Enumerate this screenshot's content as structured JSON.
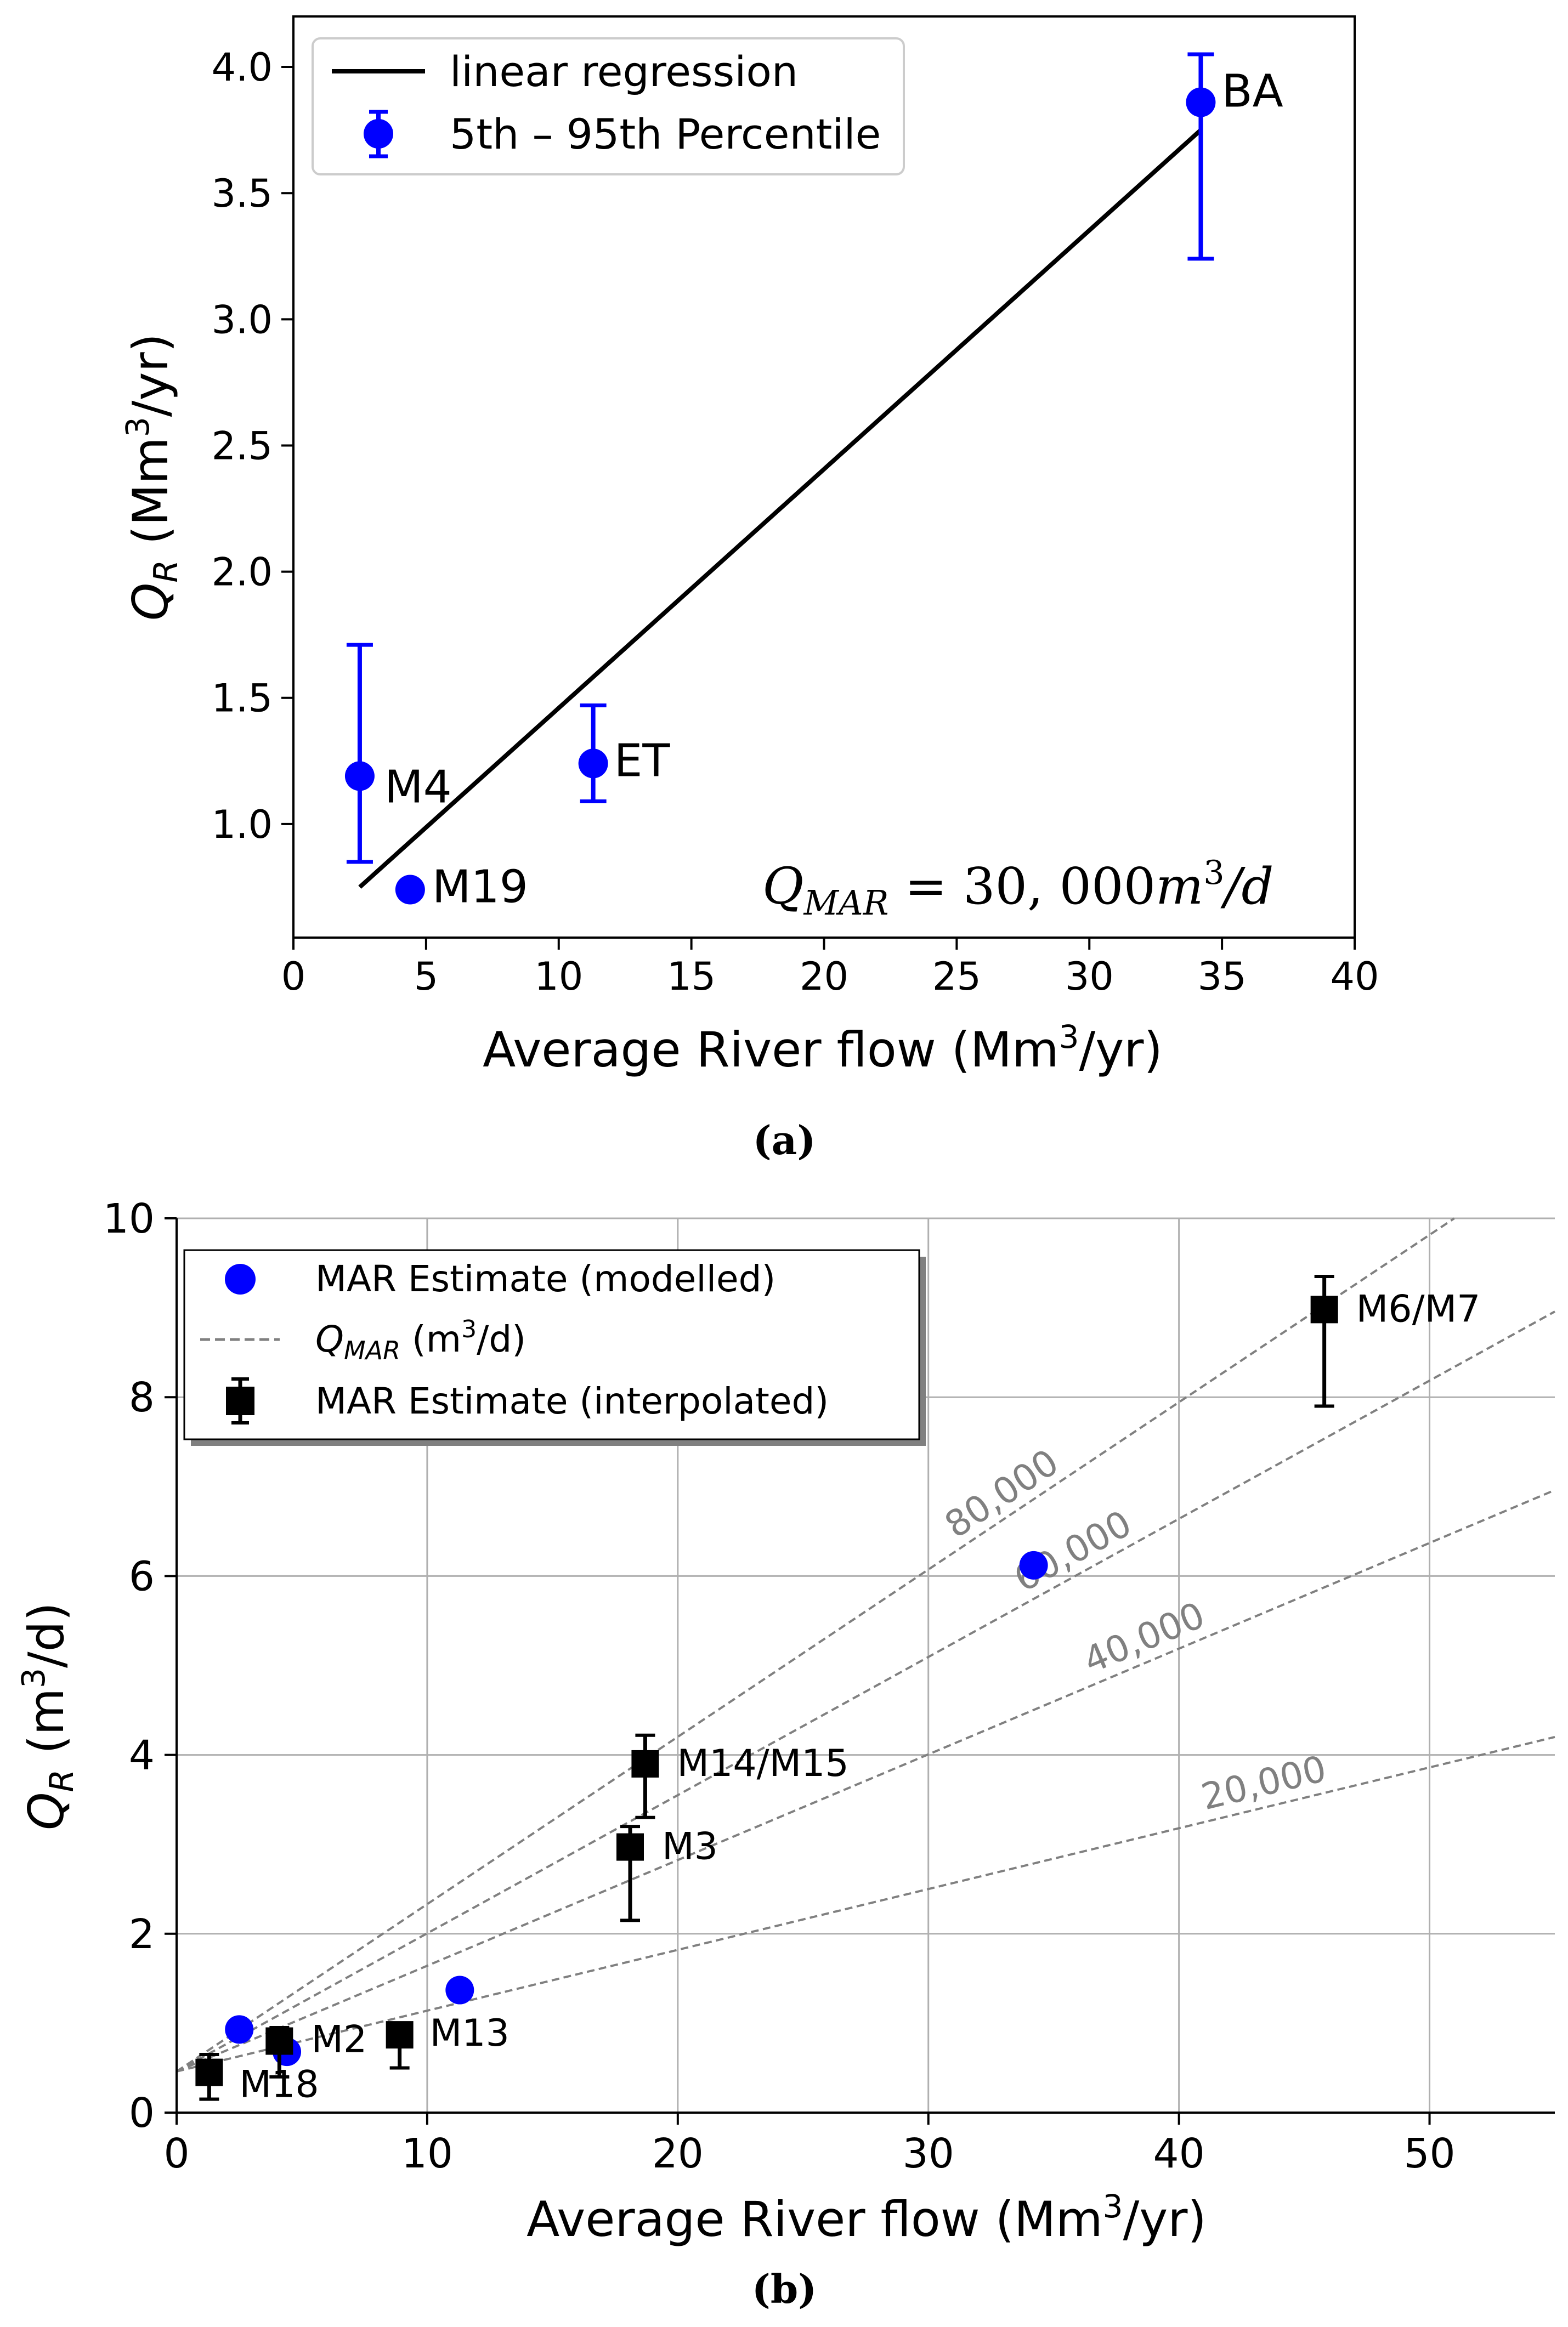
{
  "chart_data": [
    {
      "panel": "(a)",
      "type": "scatter",
      "xlabel": "Average River flow (Mm³/yr)",
      "ylabel": "Q_R (Mm³/yr)",
      "xlim": [
        0,
        40
      ],
      "ylim": [
        0.55,
        4.2
      ],
      "xticks": [
        "0",
        "5",
        "10",
        "15",
        "20",
        "25",
        "30",
        "35",
        "40"
      ],
      "yticks": [
        "1.0",
        "1.5",
        "2.0",
        "2.5",
        "3.0",
        "3.5",
        "4.0"
      ],
      "grid": false,
      "legend_position": "top-left",
      "legend": {
        "line": "linear regression",
        "errorbar": "5th – 95th Percentile"
      },
      "annotation": "Q_MAR = 30, 000m³/d",
      "regression": {
        "x": [
          2.5,
          34.2
        ],
        "y": [
          0.75,
          3.75
        ]
      },
      "points": [
        {
          "label": "M4",
          "x": 2.5,
          "y": 1.19,
          "err_low": 0.85,
          "err_high": 1.71
        },
        {
          "label": "M19",
          "x": 4.4,
          "y": 0.74
        },
        {
          "label": "ET",
          "x": 11.3,
          "y": 1.24,
          "err_low": 1.09,
          "err_high": 1.47
        },
        {
          "label": "BA",
          "x": 34.2,
          "y": 3.86,
          "err_low": 3.24,
          "err_high": 4.05
        }
      ]
    },
    {
      "panel": "(b)",
      "type": "scatter",
      "xlabel": "Average River flow (Mm³/yr)",
      "ylabel": "Q_R (m³/d)",
      "xlim": [
        0,
        55
      ],
      "ylim": [
        0,
        10
      ],
      "xticks": [
        "0",
        "10",
        "20",
        "30",
        "40",
        "50"
      ],
      "yticks": [
        "0",
        "2",
        "4",
        "6",
        "8",
        "10"
      ],
      "grid": true,
      "legend_position": "top-left",
      "legend": {
        "modelled": "MAR Estimate (modelled)",
        "qmar": "Q_MAR (m³/d)",
        "interpolated": "MAR Estimate (interpolated)"
      },
      "qmar_lines": [
        {
          "label": "20,000",
          "slope": 0.068
        },
        {
          "label": "40,000",
          "slope": 0.1182
        },
        {
          "label": "60,000",
          "slope": 0.1545
        },
        {
          "label": "80,000",
          "slope": 0.1871
        }
      ],
      "qmar_intercept": 0.46,
      "modelled": [
        {
          "x": 2.5,
          "y": 0.93
        },
        {
          "x": 4.4,
          "y": 0.68
        },
        {
          "x": 11.3,
          "y": 1.37
        },
        {
          "x": 34.2,
          "y": 6.12
        }
      ],
      "interpolated": [
        {
          "label": "M18",
          "x": 1.3,
          "y": 0.45,
          "err_low": 0.15,
          "err_high": 0.65
        },
        {
          "label": "M2",
          "x": 4.1,
          "y": 0.8,
          "err_low": 0.4,
          "err_high": 0.95
        },
        {
          "label": "M13",
          "x": 8.9,
          "y": 0.87,
          "err_low": 0.5,
          "err_high": 1.0
        },
        {
          "label": "M3",
          "x": 18.1,
          "y": 2.97,
          "err_low": 2.15,
          "err_high": 3.2
        },
        {
          "label": "M14/M15",
          "x": 18.7,
          "y": 3.9,
          "err_low": 3.3,
          "err_high": 4.22
        },
        {
          "label": "M6/M7",
          "x": 45.8,
          "y": 8.98,
          "err_low": 7.9,
          "err_high": 9.35
        }
      ]
    }
  ],
  "captions": {
    "a": "(a)",
    "b": "(b)"
  }
}
